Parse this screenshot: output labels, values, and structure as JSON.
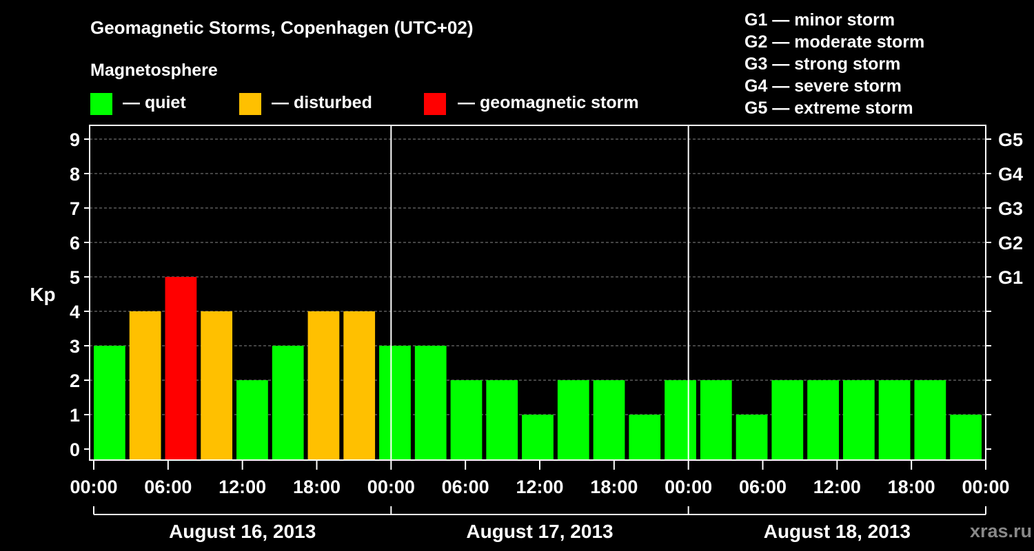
{
  "chart_data": {
    "type": "bar",
    "title": "Geomagnetic Storms, Copenhagen (UTC+02)",
    "legend_title": "Magnetosphere",
    "legend": [
      {
        "label": "— quiet",
        "color": "#00ff00"
      },
      {
        "label": "— disturbed",
        "color": "#ffc000"
      },
      {
        "label": "— geomagnetic storm",
        "color": "#ff0000"
      }
    ],
    "storm_scale": [
      "G1 — minor storm",
      "G2 — moderate storm",
      "G3 — strong storm",
      "G4 — severe storm",
      "G5 — extreme storm"
    ],
    "ylabel": "Kp",
    "ylim": [
      0,
      9
    ],
    "yticks": [
      "0",
      "1",
      "2",
      "3",
      "4",
      "5",
      "6",
      "7",
      "8",
      "9"
    ],
    "right_ticks": [
      {
        "value": 5,
        "label": "G1"
      },
      {
        "value": 6,
        "label": "G2"
      },
      {
        "value": 7,
        "label": "G3"
      },
      {
        "value": 8,
        "label": "G4"
      },
      {
        "value": 9,
        "label": "G5"
      }
    ],
    "xticks": [
      "00:00",
      "06:00",
      "12:00",
      "18:00",
      "00:00",
      "06:00",
      "12:00",
      "18:00",
      "00:00",
      "06:00",
      "12:00",
      "18:00",
      "00:00"
    ],
    "days": [
      "August 16, 2013",
      "August 17, 2013",
      "August 18, 2013"
    ],
    "interval_hours": 3,
    "values": [
      3,
      4,
      5,
      4,
      2,
      3,
      4,
      4,
      3,
      3,
      2,
      2,
      1,
      2,
      2,
      1,
      2,
      2,
      1,
      2,
      2,
      2,
      2,
      2,
      1
    ],
    "levels": [
      "quiet",
      "disturbed",
      "storm",
      "disturbed",
      "quiet",
      "quiet",
      "disturbed",
      "disturbed",
      "quiet",
      "quiet",
      "quiet",
      "quiet",
      "quiet",
      "quiet",
      "quiet",
      "quiet",
      "quiet",
      "quiet",
      "quiet",
      "quiet",
      "quiet",
      "quiet",
      "quiet",
      "quiet",
      "quiet"
    ],
    "colors": {
      "quiet": "#00ff00",
      "disturbed": "#ffc000",
      "storm": "#ff0000",
      "axis": "#ffffff",
      "grid": "#888888",
      "background": "#000000",
      "watermark": "#888888"
    },
    "grid": true,
    "watermark": "xras.ru"
  }
}
